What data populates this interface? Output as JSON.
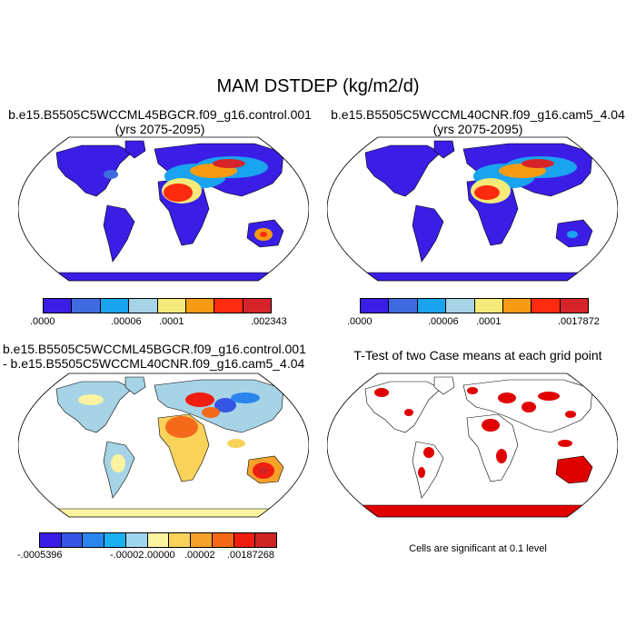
{
  "main_title": "MAM DSTDEP (kg/m2/d)",
  "panels": {
    "tl": {
      "line1": "b.e15.B5505C5WCCML45BGCR.f09_g16.control.001",
      "line2": "(yrs 2075-2095)"
    },
    "tr": {
      "line1": "b.e15.B5505C5WCCML40CNR.f09_g16.cam5_4.04",
      "line2": "(yrs 2075-2095)"
    },
    "bl": {
      "line1": "b.e15.B5505C5WCCML45BGCR.f09_g16.control.001",
      "line2": "- b.e15.B5505C5WCCML40CNR.f09_g16.cam5_4.04"
    },
    "br": {
      "line1": "T-Test of two Case means at each grid point"
    }
  },
  "colorbars": {
    "tl": {
      "colors": [
        "#3a1ee6",
        "#3f6be0",
        "#1aa3ee",
        "#a6d3e6",
        "#f4ea7a",
        "#f79b12",
        "#ff2a10",
        "#d7242a"
      ],
      "labels": [
        ".0000",
        ".00006",
        ".0001",
        ".002343"
      ]
    },
    "tr": {
      "colors": [
        "#3a1ee6",
        "#3f6be0",
        "#1aa3ee",
        "#a6d3e6",
        "#f4ea7a",
        "#f79b12",
        "#ff2a10",
        "#d7242a"
      ],
      "labels": [
        ".0000",
        ".00006",
        ".0001",
        ".0017872"
      ]
    },
    "bl": {
      "colors": [
        "#3a1ee6",
        "#3556e4",
        "#2a86ee",
        "#1cb0f0",
        "#9fd6ee",
        "#faf3a0",
        "#f9d25a",
        "#f6a12a",
        "#f46a1a",
        "#f01e10",
        "#cf2424"
      ],
      "labels": [
        "-.0005396",
        "-.00002",
        ".00000",
        ".00002",
        ".00187268"
      ]
    }
  },
  "note": "Cells are significant at 0.1 level",
  "colors": {
    "ocean": "#ffffff",
    "land_low": "#3a1ee6",
    "significant": "#e00000",
    "diff_base": "#a6d3e6"
  }
}
